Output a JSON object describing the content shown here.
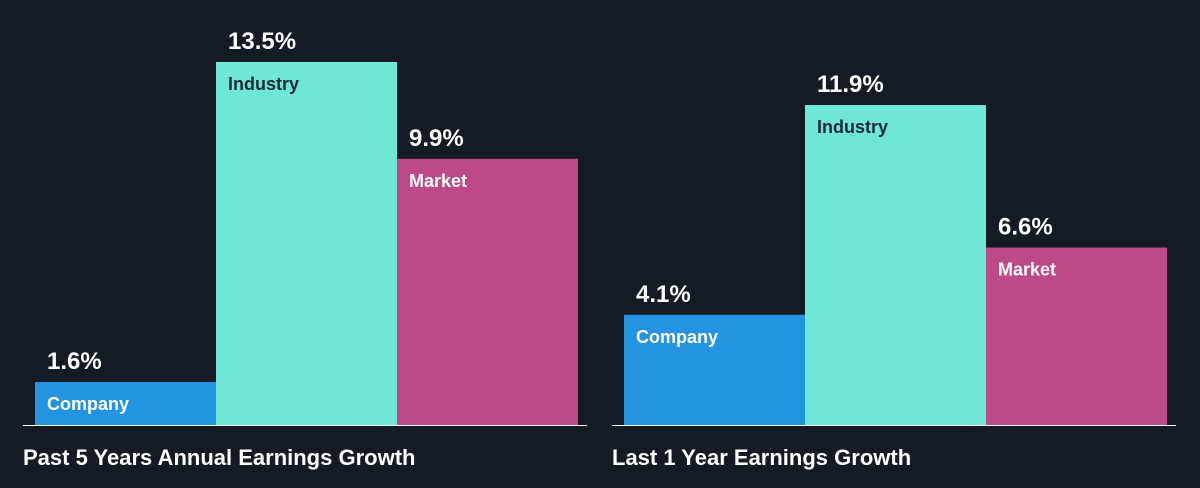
{
  "colors": {
    "background": "#151b24",
    "company": "#2494e1",
    "industry": "#6ee7d6",
    "market": "#bb4a86",
    "label_on_light": "#1c2b35",
    "label_on_dark": "#ffffff",
    "baseline": "#ffffff"
  },
  "chart_data": [
    {
      "type": "bar",
      "title": "Past 5 Years Annual Earnings Growth",
      "categories": [
        "Company",
        "Industry",
        "Market"
      ],
      "values": [
        1.6,
        13.5,
        9.9
      ],
      "value_labels": [
        "1.6%",
        "13.5%",
        "9.9%"
      ],
      "ylim": [
        0,
        13.5
      ],
      "grid": false,
      "legend": "none"
    },
    {
      "type": "bar",
      "title": "Last 1 Year Earnings Growth",
      "categories": [
        "Company",
        "Industry",
        "Market"
      ],
      "values": [
        4.1,
        11.9,
        6.6
      ],
      "value_labels": [
        "4.1%",
        "11.9%",
        "6.6%"
      ],
      "ylim": [
        0,
        13.5
      ],
      "grid": false,
      "legend": "none"
    }
  ]
}
